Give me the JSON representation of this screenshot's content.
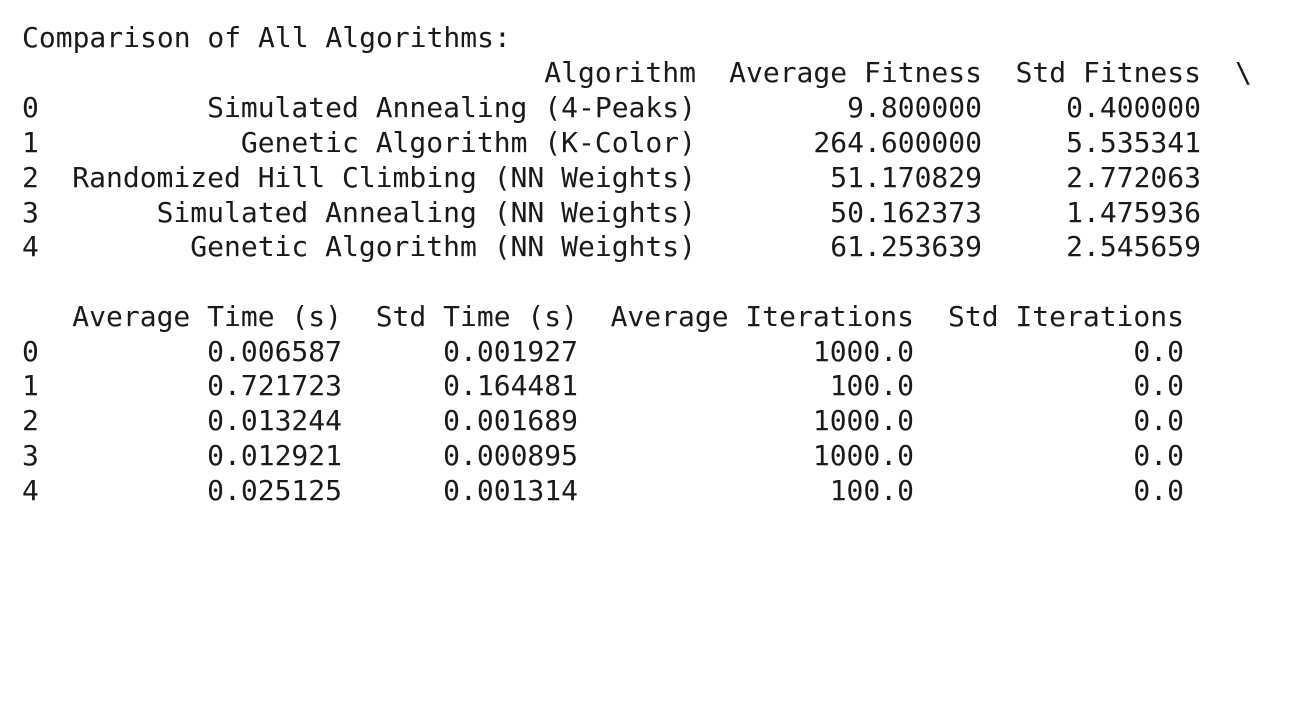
{
  "output": {
    "heading": "Comparison of All Algorithms:",
    "table1": {
      "columns": [
        "Algorithm",
        "Average Fitness",
        "Std Fitness"
      ],
      "continuation": "\\",
      "rows": [
        {
          "index": "0",
          "algorithm": "Simulated Annealing (4-Peaks)",
          "avg_fitness": "9.800000",
          "std_fitness": "0.400000"
        },
        {
          "index": "1",
          "algorithm": "Genetic Algorithm (K-Color)",
          "avg_fitness": "264.600000",
          "std_fitness": "5.535341"
        },
        {
          "index": "2",
          "algorithm": "Randomized Hill Climbing (NN Weights)",
          "avg_fitness": "51.170829",
          "std_fitness": "2.772063"
        },
        {
          "index": "3",
          "algorithm": "Simulated Annealing (NN Weights)",
          "avg_fitness": "50.162373",
          "std_fitness": "1.475936"
        },
        {
          "index": "4",
          "algorithm": "Genetic Algorithm (NN Weights)",
          "avg_fitness": "61.253639",
          "std_fitness": "2.545659"
        }
      ]
    },
    "table2": {
      "columns": [
        "Average Time (s)",
        "Std Time (s)",
        "Average Iterations",
        "Std Iterations"
      ],
      "rows": [
        {
          "index": "0",
          "avg_time": "0.006587",
          "std_time": "0.001927",
          "avg_iter": "1000.0",
          "std_iter": "0.0"
        },
        {
          "index": "1",
          "avg_time": "0.721723",
          "std_time": "0.164481",
          "avg_iter": "100.0",
          "std_iter": "0.0"
        },
        {
          "index": "2",
          "avg_time": "0.013244",
          "std_time": "0.001689",
          "avg_iter": "1000.0",
          "std_iter": "0.0"
        },
        {
          "index": "3",
          "avg_time": "0.012921",
          "std_time": "0.000895",
          "avg_iter": "1000.0",
          "std_iter": "0.0"
        },
        {
          "index": "4",
          "avg_time": "0.025125",
          "std_time": "0.001314",
          "avg_iter": "100.0",
          "std_iter": "0.0"
        }
      ]
    }
  }
}
